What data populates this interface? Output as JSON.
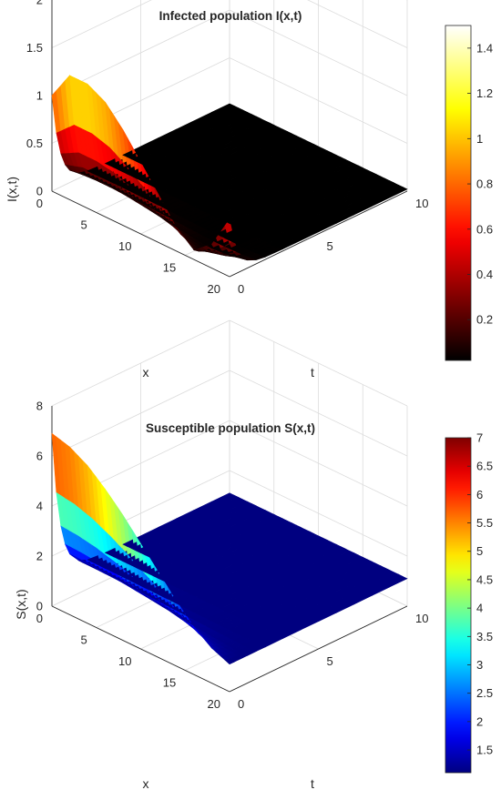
{
  "chart_data": [
    {
      "type": "surface",
      "title": "Infected population I(x,t)",
      "xlabel": "x",
      "ylabel": "t",
      "zlabel": "I(x,t)",
      "xlim": [
        0,
        20
      ],
      "ylim": [
        0,
        10
      ],
      "zlim": [
        0,
        2
      ],
      "xticks": [
        "0",
        "5",
        "10",
        "15",
        "20"
      ],
      "yticks": [
        "0",
        "5",
        "10"
      ],
      "zticks": [
        "0",
        "0.5",
        "1",
        "1.5",
        "2"
      ],
      "colormap": "hot",
      "clim": [
        0.02,
        1.5
      ],
      "colorbar_ticks": [
        "0.2",
        "0.4",
        "0.6",
        "0.8",
        "1",
        "1.2",
        "1.4"
      ],
      "grid": true,
      "t_samples": [
        0,
        0.25,
        0.5,
        0.75,
        1,
        1.5,
        2,
        3,
        4,
        5,
        6,
        7,
        8,
        9,
        10
      ],
      "surface_initial_profile": {
        "x": [
          0,
          2,
          4,
          6,
          8,
          10,
          12,
          14,
          16,
          18,
          20
        ],
        "I": [
          1.0,
          1.3,
          1.3,
          1.2,
          1.0,
          0.75,
          0.5,
          0.25,
          0.1,
          0.25,
          0.6
        ]
      },
      "surface_late_value": 0.02
    },
    {
      "type": "surface",
      "title": "Susceptible population S(x,t)",
      "xlabel": "x",
      "ylabel": "t",
      "zlabel": "S(x,t)",
      "xlim": [
        0,
        20
      ],
      "ylim": [
        0,
        10
      ],
      "zlim": [
        0,
        8
      ],
      "xticks": [
        "0",
        "5",
        "10",
        "15",
        "20"
      ],
      "yticks": [
        "0",
        "5",
        "10"
      ],
      "zticks": [
        "0",
        "2",
        "4",
        "6",
        "8"
      ],
      "colormap": "jet",
      "clim": [
        1.1,
        7.0
      ],
      "colorbar_ticks": [
        "1.5",
        "2",
        "2.5",
        "3",
        "3.5",
        "4",
        "4.5",
        "5",
        "5.5",
        "6",
        "6.5",
        "7"
      ],
      "grid": true,
      "t_samples": [
        0,
        0.25,
        0.5,
        0.75,
        1,
        1.5,
        2,
        3,
        4,
        5,
        6,
        7,
        8,
        9,
        10
      ],
      "surface_initial_profile": {
        "x": [
          0,
          2,
          4,
          6,
          8,
          10,
          12,
          14,
          16,
          18,
          20
        ],
        "S": [
          6.9,
          6.7,
          6.3,
          5.7,
          5.0,
          4.2,
          3.4,
          2.6,
          1.9,
          1.4,
          1.1
        ]
      },
      "surface_late_value": 1.1
    }
  ]
}
